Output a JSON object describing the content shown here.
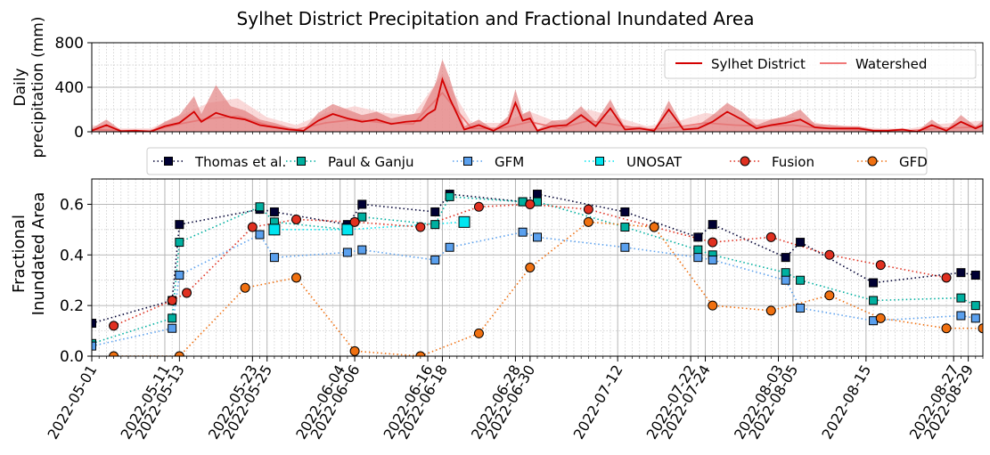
{
  "title": "Sylhet District Precipitation and Fractional Inundated Area",
  "chart_data": [
    {
      "type": "area",
      "ylabel": [
        "Daily",
        "precipitation (mm)"
      ],
      "ylim": [
        0,
        800
      ],
      "yticks": [
        0,
        400,
        800
      ],
      "xlim": [
        "2022-05-01",
        "2022-08-31"
      ],
      "legend_position": "top-right",
      "grid": true,
      "series": [
        {
          "name": "Sylhet District",
          "color": "#d40000",
          "band_color": "#e07a7a",
          "x": [
            "2022-05-01",
            "2022-05-03",
            "2022-05-05",
            "2022-05-07",
            "2022-05-09",
            "2022-05-11",
            "2022-05-13",
            "2022-05-15",
            "2022-05-16",
            "2022-05-18",
            "2022-05-20",
            "2022-05-22",
            "2022-05-24",
            "2022-05-26",
            "2022-05-28",
            "2022-05-30",
            "2022-06-01",
            "2022-06-03",
            "2022-06-05",
            "2022-06-07",
            "2022-06-09",
            "2022-06-11",
            "2022-06-13",
            "2022-06-15",
            "2022-06-16",
            "2022-06-17",
            "2022-06-18",
            "2022-06-19",
            "2022-06-21",
            "2022-06-23",
            "2022-06-25",
            "2022-06-27",
            "2022-06-28",
            "2022-06-29",
            "2022-06-30",
            "2022-07-01",
            "2022-07-03",
            "2022-07-05",
            "2022-07-07",
            "2022-07-09",
            "2022-07-11",
            "2022-07-13",
            "2022-07-15",
            "2022-07-17",
            "2022-07-19",
            "2022-07-21",
            "2022-07-23",
            "2022-07-25",
            "2022-07-27",
            "2022-07-29",
            "2022-07-31",
            "2022-08-02",
            "2022-08-04",
            "2022-08-06",
            "2022-08-08",
            "2022-08-10",
            "2022-08-12",
            "2022-08-14",
            "2022-08-16",
            "2022-08-18",
            "2022-08-20",
            "2022-08-22",
            "2022-08-24",
            "2022-08-26",
            "2022-08-28",
            "2022-08-30",
            "2022-08-31"
          ],
          "values": [
            10,
            60,
            5,
            10,
            0,
            50,
            80,
            180,
            90,
            170,
            130,
            110,
            60,
            40,
            20,
            10,
            100,
            160,
            120,
            90,
            110,
            70,
            90,
            100,
            160,
            200,
            470,
            300,
            20,
            60,
            10,
            80,
            260,
            100,
            120,
            10,
            50,
            60,
            150,
            50,
            210,
            20,
            30,
            10,
            200,
            20,
            30,
            90,
            180,
            110,
            30,
            60,
            80,
            110,
            40,
            30,
            30,
            30,
            10,
            10,
            20,
            0,
            60,
            10,
            90,
            30,
            60
          ],
          "band_high": [
            30,
            110,
            15,
            20,
            5,
            90,
            150,
            320,
            160,
            420,
            230,
            190,
            110,
            80,
            40,
            20,
            170,
            250,
            200,
            150,
            180,
            120,
            150,
            170,
            300,
            420,
            650,
            480,
            50,
            110,
            20,
            140,
            380,
            160,
            190,
            20,
            100,
            110,
            230,
            90,
            290,
            40,
            50,
            20,
            280,
            40,
            60,
            150,
            260,
            180,
            60,
            110,
            140,
            200,
            70,
            60,
            50,
            50,
            20,
            20,
            30,
            5,
            110,
            20,
            150,
            50,
            100
          ]
        },
        {
          "name": "Watershed",
          "color": "#f07878",
          "band_color": "#f8c4c4",
          "x": [
            "2022-05-01",
            "2022-05-05",
            "2022-05-09",
            "2022-05-13",
            "2022-05-17",
            "2022-05-21",
            "2022-05-25",
            "2022-05-29",
            "2022-06-02",
            "2022-06-06",
            "2022-06-10",
            "2022-06-14",
            "2022-06-18",
            "2022-06-22",
            "2022-06-26",
            "2022-06-30",
            "2022-07-04",
            "2022-07-08",
            "2022-07-12",
            "2022-07-16",
            "2022-07-20",
            "2022-07-24",
            "2022-07-28",
            "2022-08-01",
            "2022-08-05",
            "2022-08-09",
            "2022-08-13",
            "2022-08-17",
            "2022-08-21",
            "2022-08-25",
            "2022-08-29",
            "2022-08-31"
          ],
          "values": [
            20,
            10,
            10,
            70,
            120,
            140,
            60,
            20,
            80,
            110,
            80,
            70,
            350,
            30,
            30,
            90,
            30,
            100,
            60,
            20,
            40,
            80,
            60,
            50,
            60,
            30,
            20,
            10,
            10,
            30,
            40,
            50
          ],
          "band_high": [
            60,
            30,
            30,
            140,
            260,
            300,
            130,
            60,
            170,
            230,
            170,
            150,
            520,
            80,
            80,
            180,
            80,
            200,
            130,
            50,
            90,
            170,
            130,
            110,
            130,
            70,
            50,
            30,
            30,
            70,
            90,
            100
          ]
        }
      ]
    },
    {
      "type": "line",
      "ylabel": [
        "Fractional",
        "Inundated Area"
      ],
      "ylim": [
        0.0,
        0.7
      ],
      "yticks": [
        0.0,
        0.2,
        0.4,
        0.6
      ],
      "ytick_labels": [
        "0.0",
        "0.2",
        "0.4",
        "0.6"
      ],
      "xlim": [
        "2022-05-01",
        "2022-08-31"
      ],
      "xticks": [
        "2022-05-01",
        "2022-05-11",
        "2022-05-13",
        "2022-05-23",
        "2022-05-25",
        "2022-06-04",
        "2022-06-06",
        "2022-06-16",
        "2022-06-18",
        "2022-06-28",
        "2022-06-30",
        "2022-07-12",
        "2022-07-22",
        "2022-07-24",
        "2022-08-03",
        "2022-08-05",
        "2022-08-15",
        "2022-08-27",
        "2022-08-29"
      ],
      "legend_position": "top (above plot)",
      "grid": true,
      "series": [
        {
          "name": "Thomas et al.",
          "color": "#000033",
          "marker": "square",
          "x": [
            "2022-05-01",
            "2022-05-12",
            "2022-05-13",
            "2022-05-24",
            "2022-05-26",
            "2022-06-05",
            "2022-06-07",
            "2022-06-17",
            "2022-06-19",
            "2022-06-29",
            "2022-07-01",
            "2022-07-13",
            "2022-07-23",
            "2022-07-25",
            "2022-08-04",
            "2022-08-06",
            "2022-08-16",
            "2022-08-28",
            "2022-08-30"
          ],
          "values": [
            0.13,
            0.22,
            0.52,
            0.58,
            0.57,
            0.52,
            0.6,
            0.57,
            0.64,
            0.61,
            0.64,
            0.57,
            0.47,
            0.52,
            0.39,
            0.45,
            0.29,
            0.33,
            0.32
          ]
        },
        {
          "name": "Paul & Ganju",
          "color": "#00b0a0",
          "marker": "square",
          "x": [
            "2022-05-01",
            "2022-05-12",
            "2022-05-13",
            "2022-05-24",
            "2022-05-26",
            "2022-06-05",
            "2022-06-07",
            "2022-06-17",
            "2022-06-19",
            "2022-06-29",
            "2022-07-01",
            "2022-07-13",
            "2022-07-23",
            "2022-07-25",
            "2022-08-04",
            "2022-08-06",
            "2022-08-16",
            "2022-08-28",
            "2022-08-30"
          ],
          "values": [
            0.05,
            0.15,
            0.45,
            0.59,
            0.53,
            0.5,
            0.55,
            0.52,
            0.63,
            0.61,
            0.61,
            0.51,
            0.42,
            0.4,
            0.33,
            0.3,
            0.22,
            0.23,
            0.2
          ]
        },
        {
          "name": "GFM",
          "color": "#5aa0ee",
          "marker": "square",
          "x": [
            "2022-05-01",
            "2022-05-12",
            "2022-05-13",
            "2022-05-24",
            "2022-05-26",
            "2022-06-05",
            "2022-06-07",
            "2022-06-17",
            "2022-06-19",
            "2022-06-29",
            "2022-07-01",
            "2022-07-13",
            "2022-07-23",
            "2022-07-25",
            "2022-08-04",
            "2022-08-06",
            "2022-08-16",
            "2022-08-28",
            "2022-08-30"
          ],
          "values": [
            0.04,
            0.11,
            0.32,
            0.48,
            0.39,
            0.41,
            0.42,
            0.38,
            0.43,
            0.49,
            0.47,
            0.43,
            0.39,
            0.38,
            0.3,
            0.19,
            0.14,
            0.16,
            0.15
          ]
        },
        {
          "name": "UNOSAT",
          "color": "#00e5f0",
          "marker": "square-large",
          "x": [
            "2022-05-26",
            "2022-06-05",
            "2022-06-21"
          ],
          "values": [
            0.5,
            0.5,
            0.53
          ]
        },
        {
          "name": "Fusion",
          "color": "#e03020",
          "marker": "circle",
          "x": [
            "2022-05-04",
            "2022-05-12",
            "2022-05-14",
            "2022-05-23",
            "2022-05-29",
            "2022-06-06",
            "2022-06-15",
            "2022-06-23",
            "2022-06-30",
            "2022-07-08",
            "2022-07-17",
            "2022-07-25",
            "2022-08-02",
            "2022-08-10",
            "2022-08-17",
            "2022-08-26"
          ],
          "values": [
            0.12,
            0.22,
            0.25,
            0.51,
            0.54,
            0.53,
            0.51,
            0.59,
            0.6,
            0.58,
            0.51,
            0.45,
            0.47,
            0.4,
            0.36,
            0.31
          ]
        },
        {
          "name": "GFD",
          "color": "#f07010",
          "marker": "circle",
          "x": [
            "2022-05-04",
            "2022-05-13",
            "2022-05-22",
            "2022-05-29",
            "2022-06-06",
            "2022-06-15",
            "2022-06-23",
            "2022-06-30",
            "2022-07-08",
            "2022-07-17",
            "2022-07-25",
            "2022-08-02",
            "2022-08-10",
            "2022-08-17",
            "2022-08-26",
            "2022-08-31"
          ],
          "values": [
            0.0,
            0.0,
            0.27,
            0.31,
            0.02,
            0.0,
            0.09,
            0.35,
            0.53,
            0.51,
            0.2,
            0.18,
            0.24,
            0.15,
            0.11,
            0.11
          ]
        }
      ]
    }
  ]
}
